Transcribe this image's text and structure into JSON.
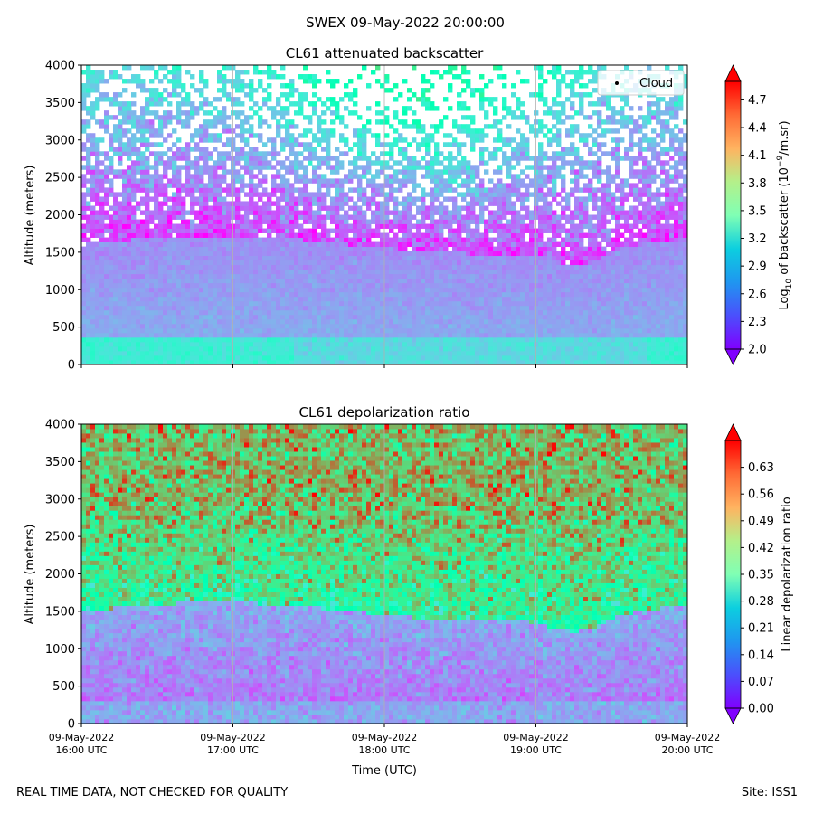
{
  "figure": {
    "suptitle": "SWEX 09-May-2022 20:00:00",
    "footer_left": "REAL TIME DATA, NOT CHECKED FOR QUALITY",
    "footer_right": "Site: ISS1"
  },
  "chart_data": [
    {
      "type": "heatmap",
      "title": "CL61 attenuated backscatter",
      "ylabel": "Altitude (meters)",
      "xlabel": "",
      "ylim": [
        0,
        4000
      ],
      "yticks": [
        "0",
        "500",
        "1000",
        "1500",
        "2000",
        "2500",
        "3000",
        "3500",
        "4000"
      ],
      "x_categories": [
        "09-May-2022 16:00 UTC",
        "09-May-2022 17:00 UTC",
        "09-May-2022 18:00 UTC",
        "09-May-2022 19:00 UTC",
        "09-May-2022 20:00 UTC"
      ],
      "legend": [
        {
          "label": "Cloud",
          "marker": "dot",
          "position": "top-right"
        }
      ],
      "colorbar": {
        "label_prefix": "Log",
        "label_sub": "10",
        "label_mid": " of backscatter (10",
        "label_sup": "−9",
        "label_suffix": "/m.sr)",
        "range": [
          2.0,
          4.9
        ],
        "ticks": [
          "2.0",
          "2.3",
          "2.6",
          "2.9",
          "3.2",
          "3.5",
          "3.8",
          "4.1",
          "4.4",
          "4.7"
        ],
        "extend": "both",
        "colormap": "rainbow"
      }
    },
    {
      "type": "heatmap",
      "title": "CL61 depolarization ratio",
      "ylabel": "Altitude (meters)",
      "xlabel": "Time (UTC)",
      "ylim": [
        0,
        4000
      ],
      "yticks": [
        "0",
        "500",
        "1000",
        "1500",
        "2000",
        "2500",
        "3000",
        "3500",
        "4000"
      ],
      "x_categories": [
        "09-May-2022 16:00 UTC",
        "09-May-2022 17:00 UTC",
        "09-May-2022 18:00 UTC",
        "09-May-2022 19:00 UTC",
        "09-May-2022 20:00 UTC"
      ],
      "xtick_lines": [
        [
          "09-May-2022",
          "16:00 UTC"
        ],
        [
          "09-May-2022",
          "17:00 UTC"
        ],
        [
          "09-May-2022",
          "18:00 UTC"
        ],
        [
          "09-May-2022",
          "19:00 UTC"
        ],
        [
          "09-May-2022",
          "20:00 UTC"
        ]
      ],
      "colorbar": {
        "label": "Linear depolarization ratio",
        "range": [
          0.0,
          0.7
        ],
        "ticks": [
          "0.00",
          "0.07",
          "0.14",
          "0.21",
          "0.28",
          "0.35",
          "0.42",
          "0.49",
          "0.56",
          "0.63"
        ],
        "extend": "both",
        "colormap": "rainbow"
      }
    }
  ]
}
